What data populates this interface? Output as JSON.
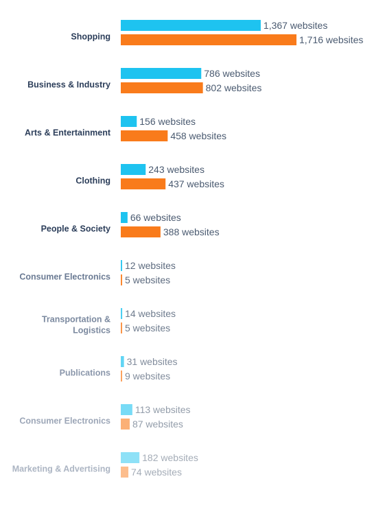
{
  "chart_data": {
    "type": "bar",
    "orientation": "horizontal",
    "value_suffix": " websites",
    "categories": [
      "Shopping",
      "Business & Industry",
      "Arts & Entertainment",
      "Clothing",
      "People & Society",
      "Consumer Electronics",
      "Transportation & Logistics",
      "Publications",
      "Consumer Electronics",
      "Marketing & Advertising"
    ],
    "category_label_lines": [
      [
        "Shopping"
      ],
      [
        "Business & Industry"
      ],
      [
        "Arts & Entertainment"
      ],
      [
        "Clothing"
      ],
      [
        "People & Society"
      ],
      [
        "Consumer Electronics"
      ],
      [
        "Transportation &",
        "Logistics"
      ],
      [
        "Publications"
      ],
      [
        "Consumer Electronics"
      ],
      [
        "Marketing & Advertising"
      ]
    ],
    "series": [
      {
        "values": [
          1367,
          786,
          156,
          243,
          66,
          12,
          14,
          31,
          113,
          182
        ],
        "labels": [
          "1,367",
          "786",
          "156",
          "243",
          "66",
          "12",
          "14",
          "31",
          "113",
          "182"
        ],
        "color": "#1ec3f0"
      },
      {
        "values": [
          1716,
          802,
          458,
          437,
          388,
          5,
          5,
          9,
          87,
          74
        ],
        "labels": [
          "1,716",
          "802",
          "458",
          "437",
          "388",
          "5",
          "5",
          "9",
          "87",
          "74"
        ],
        "color": "#f97b1b"
      }
    ],
    "fading": true,
    "xlim": [
      0,
      1716
    ]
  }
}
